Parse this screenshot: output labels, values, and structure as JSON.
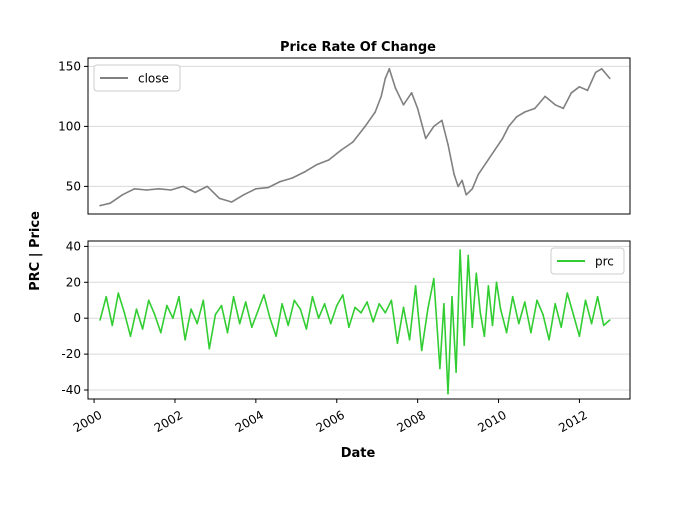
{
  "chart_data": {
    "type": "line",
    "title": "Price Rate Of Change",
    "xlabel": "Date",
    "ylabel": "PRC | Price",
    "x_ticks": [
      "2000",
      "2002",
      "2004",
      "2006",
      "2008",
      "2010",
      "2012"
    ],
    "x_range": [
      1999.85,
      2013.25
    ],
    "grid": "horizontal",
    "panels": [
      {
        "name": "price",
        "ylim": [
          27,
          157
        ],
        "y_ticks": [
          50,
          100,
          150
        ],
        "legend_position": "top-left",
        "series": [
          {
            "name": "close",
            "color": "#808080",
            "x": [
              2000.15,
              2000.4,
              2000.7,
              2001.0,
              2001.3,
              2001.6,
              2001.9,
              2002.2,
              2002.5,
              2002.8,
              2003.1,
              2003.4,
              2003.7,
              2004.0,
              2004.3,
              2004.6,
              2004.9,
              2005.2,
              2005.5,
              2005.8,
              2006.1,
              2006.4,
              2006.7,
              2006.95,
              2007.1,
              2007.2,
              2007.3,
              2007.45,
              2007.65,
              2007.85,
              2008.0,
              2008.2,
              2008.4,
              2008.6,
              2008.75,
              2008.9,
              2009.0,
              2009.1,
              2009.2,
              2009.35,
              2009.5,
              2009.7,
              2009.9,
              2010.1,
              2010.25,
              2010.45,
              2010.65,
              2010.9,
              2011.15,
              2011.4,
              2011.6,
              2011.8,
              2012.0,
              2012.2,
              2012.4,
              2012.55,
              2012.75
            ],
            "values": [
              34,
              36,
              43,
              48,
              47,
              48,
              47,
              50,
              45,
              50,
              40,
              37,
              43,
              48,
              49,
              54,
              57,
              62,
              68,
              72,
              80,
              87,
              100,
              112,
              125,
              140,
              148,
              132,
              118,
              128,
              115,
              90,
              100,
              105,
              85,
              60,
              50,
              55,
              43,
              48,
              60,
              70,
              80,
              90,
              100,
              108,
              112,
              115,
              125,
              118,
              115,
              128,
              133,
              130,
              145,
              148,
              140
            ]
          }
        ]
      },
      {
        "name": "prc",
        "ylim": [
          -45,
          43
        ],
        "y_ticks": [
          -40,
          -20,
          0,
          20,
          40
        ],
        "legend_position": "top-right",
        "series": [
          {
            "name": "prc",
            "color": "#32cd32",
            "x": [
              2000.15,
              2000.3,
              2000.45,
              2000.6,
              2000.75,
              2000.9,
              2001.05,
              2001.2,
              2001.35,
              2001.5,
              2001.65,
              2001.8,
              2001.95,
              2002.1,
              2002.25,
              2002.4,
              2002.55,
              2002.7,
              2002.85,
              2003.0,
              2003.15,
              2003.3,
              2003.45,
              2003.6,
              2003.75,
              2003.9,
              2004.05,
              2004.2,
              2004.35,
              2004.5,
              2004.65,
              2004.8,
              2004.95,
              2005.1,
              2005.25,
              2005.4,
              2005.55,
              2005.7,
              2005.85,
              2006.0,
              2006.15,
              2006.3,
              2006.45,
              2006.6,
              2006.75,
              2006.9,
              2007.05,
              2007.2,
              2007.35,
              2007.5,
              2007.65,
              2007.8,
              2007.95,
              2008.1,
              2008.25,
              2008.4,
              2008.55,
              2008.65,
              2008.75,
              2008.85,
              2008.95,
              2009.05,
              2009.15,
              2009.25,
              2009.35,
              2009.45,
              2009.55,
              2009.65,
              2009.75,
              2009.85,
              2009.95,
              2010.05,
              2010.2,
              2010.35,
              2010.5,
              2010.65,
              2010.8,
              2010.95,
              2011.1,
              2011.25,
              2011.4,
              2011.55,
              2011.7,
              2011.85,
              2012.0,
              2012.15,
              2012.3,
              2012.45,
              2012.6,
              2012.75
            ],
            "values": [
              -1,
              12,
              -4,
              14,
              3,
              -10,
              5,
              -6,
              10,
              2,
              -8,
              7,
              0,
              12,
              -12,
              5,
              -3,
              10,
              -17,
              2,
              7,
              -8,
              12,
              -3,
              9,
              -5,
              4,
              13,
              0,
              -10,
              8,
              -4,
              10,
              5,
              -6,
              12,
              0,
              8,
              -3,
              7,
              13,
              -5,
              6,
              3,
              9,
              -2,
              8,
              3,
              10,
              -14,
              6,
              -12,
              18,
              -18,
              5,
              22,
              -28,
              8,
              -42,
              12,
              -30,
              38,
              -15,
              35,
              -5,
              25,
              3,
              -10,
              18,
              -4,
              20,
              5,
              -8,
              12,
              -3,
              9,
              -8,
              10,
              2,
              -12,
              8,
              -5,
              14,
              2,
              -10,
              10,
              -3,
              12,
              -4,
              -1
            ]
          }
        ]
      }
    ]
  }
}
